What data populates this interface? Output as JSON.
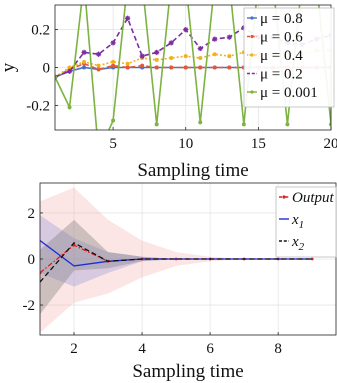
{
  "chart_data": [
    {
      "type": "line",
      "title": "",
      "xlabel": "Sampling time",
      "ylabel": "y",
      "xlim": [
        1,
        20
      ],
      "ylim": [
        -0.33,
        0.33
      ],
      "xticks": [
        5,
        10,
        15,
        20
      ],
      "yticks": [
        -0.2,
        0,
        0.2
      ],
      "xtick_labels": [
        "5",
        "10",
        "15",
        "20"
      ],
      "ytick_labels": [
        "-0.2",
        "0",
        "0.2"
      ],
      "grid": true,
      "legend_position": "top-right",
      "x": [
        1,
        2,
        3,
        4,
        5,
        6,
        7,
        8,
        9,
        10,
        11,
        12,
        13,
        14,
        15,
        16,
        17,
        18,
        19,
        20
      ],
      "series": [
        {
          "name": "μ = 0.8",
          "color": "#4a70c4",
          "marker": "circle",
          "dash": "solid",
          "values": [
            -0.05,
            -0.02,
            0.0,
            -0.01,
            0.0,
            0.0,
            0.0,
            0.0,
            0.0,
            0.0,
            0.0,
            0.0,
            0.0,
            0.0,
            0.0,
            0.0,
            0.0,
            0.0,
            0.0,
            0.0
          ]
        },
        {
          "name": "μ = 0.6",
          "color": "#e05a3a",
          "marker": "circle",
          "dash": "dash",
          "values": [
            -0.05,
            -0.01,
            0.02,
            -0.01,
            0.01,
            0.0,
            0.01,
            0.0,
            0.0,
            0.0,
            0.0,
            0.0,
            0.0,
            0.0,
            0.0,
            0.0,
            0.0,
            0.0,
            0.0,
            0.0
          ]
        },
        {
          "name": "μ = 0.4",
          "color": "#f0b020",
          "marker": "circle",
          "dash": "dot",
          "values": [
            -0.05,
            0.0,
            0.03,
            0.01,
            0.03,
            0.02,
            0.05,
            0.04,
            0.05,
            0.06,
            0.05,
            0.07,
            0.06,
            0.08,
            0.07,
            0.07,
            0.08,
            0.07,
            0.09,
            0.09
          ]
        },
        {
          "name": "μ = 0.2",
          "color": "#7a2ea0",
          "marker": "star",
          "dash": "dash",
          "values": [
            -0.05,
            -0.02,
            0.08,
            0.07,
            0.13,
            0.26,
            0.06,
            0.08,
            0.13,
            0.2,
            0.1,
            0.15,
            0.16,
            0.21,
            0.16,
            0.16,
            0.13,
            0.12,
            0.15,
            0.17
          ]
        },
        {
          "name": "μ = 0.001",
          "color": "#7cb341",
          "marker": "circle",
          "dash": "solid",
          "values": [
            -0.05,
            -0.21,
            0.45,
            -0.45,
            -0.28,
            0.45,
            0.45,
            -0.3,
            0.45,
            0.45,
            -0.29,
            0.45,
            0.45,
            -0.3,
            0.45,
            0.45,
            -0.3,
            0.45,
            0.45,
            -0.3
          ]
        }
      ]
    },
    {
      "type": "line",
      "title": "",
      "xlabel": "Sampling time",
      "ylabel": "",
      "xlim": [
        1,
        9.7
      ],
      "ylim": [
        -3.3,
        3.3
      ],
      "xticks": [
        2,
        4,
        6,
        8
      ],
      "yticks": [
        -2,
        0,
        2
      ],
      "xtick_labels": [
        "2",
        "4",
        "6",
        "8"
      ],
      "ytick_labels": [
        "-2",
        "0",
        "2"
      ],
      "grid": true,
      "legend_position": "top-right",
      "x": [
        1,
        2,
        3,
        4,
        5,
        6,
        7,
        8,
        9
      ],
      "series": [
        {
          "name": "Output",
          "color": "#e02020",
          "marker": "dot",
          "dash": "dashdot",
          "values": [
            -0.6,
            0.6,
            -0.1,
            0.0,
            0.0,
            0.0,
            0.0,
            0.0,
            0.0
          ],
          "band": {
            "color": "#f5a8a8",
            "opacity": 0.3,
            "lower": [
              -3.2,
              -1.9,
              -1.5,
              -0.8,
              -0.3,
              -0.1,
              0.0,
              0.0,
              0.0
            ],
            "upper": [
              2.5,
              3.1,
              1.7,
              0.8,
              0.3,
              0.1,
              0.0,
              0.0,
              0.0
            ]
          }
        },
        {
          "name": "x1",
          "color": "#1c2fd6",
          "marker": "none",
          "dash": "solid",
          "values": [
            0.8,
            -0.3,
            -0.1,
            0.0,
            0.0,
            0.0,
            0.0,
            0.0,
            0.0
          ],
          "band": {
            "color": "#8e96d8",
            "opacity": 0.35,
            "lower": [
              -0.6,
              -1.2,
              -0.6,
              -0.1,
              0.0,
              0.0,
              0.0,
              0.0,
              0.0
            ],
            "upper": [
              1.9,
              0.9,
              0.3,
              0.1,
              0.0,
              0.0,
              0.0,
              0.0,
              0.0
            ]
          }
        },
        {
          "name": "x2",
          "color": "#111111",
          "marker": "none",
          "dash": "dash",
          "values": [
            -1.0,
            0.7,
            -0.1,
            0.0,
            0.0,
            0.0,
            0.0,
            0.0,
            0.0
          ],
          "band": {
            "color": "#777777",
            "opacity": 0.35,
            "lower": [
              -2.4,
              -0.5,
              -0.4,
              -0.1,
              0.0,
              0.0,
              0.0,
              0.0,
              0.0
            ],
            "upper": [
              0.4,
              1.7,
              0.3,
              0.1,
              0.0,
              0.0,
              0.0,
              0.0,
              0.0
            ]
          }
        }
      ]
    }
  ]
}
